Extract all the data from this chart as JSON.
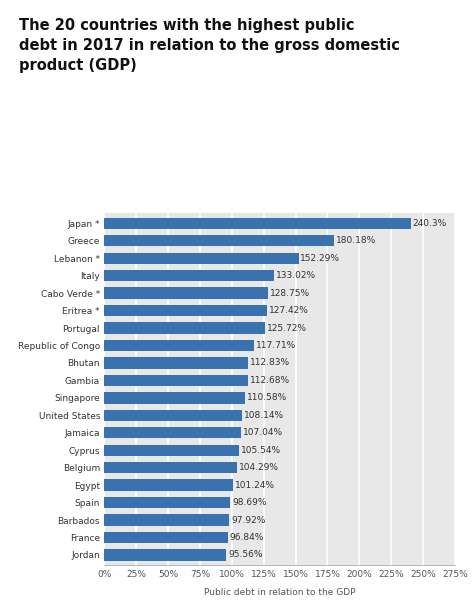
{
  "title": "The 20 countries with the highest public\ndebt in 2017 in relation to the gross domestic\nproduct (GDP)",
  "xlabel": "Public debt in relation to the GDP",
  "categories": [
    "Japan *",
    "Greece",
    "Lebanon *",
    "Italy",
    "Cabo Verde *",
    "Eritrea *",
    "Portugal",
    "Republic of Congo",
    "Bhutan",
    "Gambia",
    "Singapore",
    "United States",
    "Jamaica",
    "Cyprus",
    "Belgium",
    "Egypt",
    "Spain",
    "Barbados",
    "France",
    "Jordan"
  ],
  "values": [
    240.3,
    180.18,
    152.29,
    133.02,
    128.75,
    127.42,
    125.72,
    117.71,
    112.83,
    112.68,
    110.58,
    108.14,
    107.04,
    105.54,
    104.29,
    101.24,
    98.69,
    97.92,
    96.84,
    95.56
  ],
  "bar_color": "#3a72b0",
  "background_color": "#e8e8e8",
  "title_fontsize": 10.5,
  "label_fontsize": 6.5,
  "value_fontsize": 6.5,
  "xlabel_fontsize": 6.5,
  "tick_fontsize": 6.5,
  "xlim": [
    0,
    275
  ],
  "xticks": [
    0,
    25,
    50,
    75,
    100,
    125,
    150,
    175,
    200,
    225,
    250,
    275
  ]
}
